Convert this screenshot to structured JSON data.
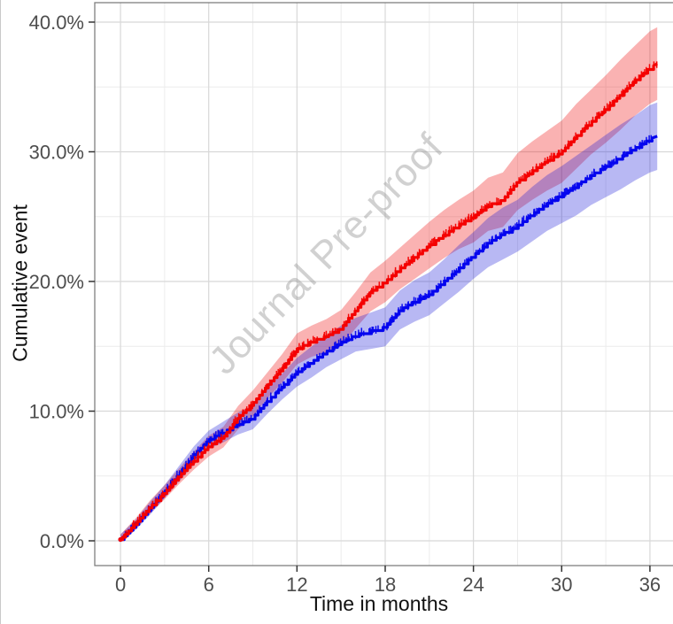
{
  "figure": {
    "watermark": "Journal Pre-proof"
  },
  "chart_data": {
    "type": "line",
    "title": "",
    "xlabel": "Time in months",
    "ylabel": "Cumulative event",
    "legend": "none",
    "grid": true,
    "watermark": "Journal Pre-proof",
    "xlim": [
      -1.75,
      37.63
    ],
    "ylim": [
      -1.91,
      41.5
    ],
    "x_ticks": [
      0,
      6,
      12,
      18,
      24,
      30,
      36
    ],
    "x_minor_ticks": [
      3,
      9,
      15,
      21,
      27,
      33
    ],
    "y_ticks": [
      0,
      10,
      20,
      30,
      40
    ],
    "y_tick_labels": [
      "0.0%",
      "10.0%",
      "20.0%",
      "30.0%",
      "40.0%"
    ],
    "y_minor_ticks": [
      5,
      15,
      25,
      35
    ],
    "colors": {
      "panel_border": "#7f7f7f",
      "grid_major": "#d8d8d8",
      "grid_minor": "#ececec",
      "tick_mark": "#333333",
      "tick_label": "#4d4d4d",
      "axis_title": "#111111",
      "watermark": "#9a9a9a"
    },
    "x": [
      0,
      1,
      2,
      3,
      4,
      5,
      6,
      7,
      8,
      9,
      10,
      11,
      12,
      13,
      14,
      15,
      16,
      17,
      18,
      19,
      20,
      21,
      22,
      23,
      24,
      25,
      26,
      27,
      28,
      29,
      30,
      31,
      32,
      33,
      34,
      35,
      36,
      36.5
    ],
    "series": [
      {
        "name": "group-red",
        "color": "#f40000",
        "band_color": "#f00000",
        "band_opacity": 0.3,
        "y": [
          0.1,
          1.3,
          2.6,
          3.7,
          5.0,
          6.2,
          7.3,
          8.0,
          9.5,
          10.6,
          12.0,
          13.3,
          14.8,
          15.4,
          15.8,
          16.4,
          17.8,
          19.2,
          20.0,
          21.0,
          21.9,
          22.8,
          23.6,
          24.4,
          25.0,
          25.9,
          26.3,
          27.7,
          28.5,
          29.3,
          30.0,
          31.2,
          32.3,
          33.3,
          34.4,
          35.5,
          36.5,
          36.8
        ],
        "upper": [
          0.5,
          1.7,
          3.1,
          4.3,
          5.6,
          6.9,
          8.1,
          8.8,
          10.4,
          11.6,
          13.0,
          14.4,
          16.0,
          16.6,
          17.1,
          17.8,
          19.2,
          20.7,
          21.6,
          22.6,
          23.6,
          24.6,
          25.5,
          26.3,
          27.0,
          28.0,
          28.4,
          29.9,
          30.8,
          31.6,
          32.4,
          33.7,
          34.8,
          35.9,
          37.1,
          38.2,
          39.3,
          39.6
        ],
        "lower": [
          0.0,
          0.9,
          2.1,
          3.2,
          4.4,
          5.5,
          6.5,
          7.2,
          8.6,
          9.6,
          11.0,
          12.2,
          13.6,
          14.2,
          14.5,
          15.0,
          16.4,
          17.7,
          18.4,
          19.4,
          20.2,
          21.0,
          21.8,
          22.5,
          23.0,
          23.9,
          24.2,
          25.5,
          26.3,
          27.0,
          27.6,
          28.7,
          29.8,
          30.7,
          31.7,
          32.8,
          33.7,
          34.0
        ]
      },
      {
        "name": "group-blue",
        "color": "#0505ee",
        "band_color": "#1515d8",
        "band_opacity": 0.3,
        "y": [
          0.1,
          1.2,
          2.5,
          3.8,
          5.2,
          6.6,
          7.8,
          8.4,
          9.0,
          9.5,
          10.8,
          11.9,
          13.0,
          13.8,
          14.6,
          15.3,
          15.9,
          16.2,
          16.5,
          17.8,
          18.5,
          19.0,
          20.0,
          21.0,
          22.0,
          23.0,
          23.7,
          24.3,
          25.2,
          26.0,
          26.7,
          27.4,
          28.2,
          28.9,
          29.6,
          30.3,
          31.0,
          31.2
        ],
        "upper": [
          0.5,
          1.6,
          3.0,
          4.3,
          5.8,
          7.3,
          8.5,
          9.2,
          9.9,
          10.4,
          11.8,
          12.9,
          14.1,
          15.0,
          15.8,
          16.6,
          17.2,
          17.6,
          18.0,
          19.3,
          20.1,
          20.7,
          21.7,
          22.8,
          23.8,
          24.9,
          25.7,
          26.3,
          27.3,
          28.2,
          28.9,
          29.7,
          30.5,
          31.3,
          32.1,
          32.8,
          33.6,
          33.8
        ],
        "lower": [
          0.0,
          0.8,
          2.0,
          3.3,
          4.6,
          5.9,
          7.1,
          7.6,
          8.2,
          8.6,
          9.8,
          10.9,
          11.9,
          12.6,
          13.4,
          14.0,
          14.6,
          14.8,
          15.0,
          16.3,
          16.9,
          17.4,
          18.3,
          19.2,
          20.2,
          21.1,
          21.7,
          22.3,
          23.1,
          23.9,
          24.5,
          25.1,
          25.9,
          26.5,
          27.1,
          27.8,
          28.4,
          28.6
        ]
      }
    ]
  }
}
